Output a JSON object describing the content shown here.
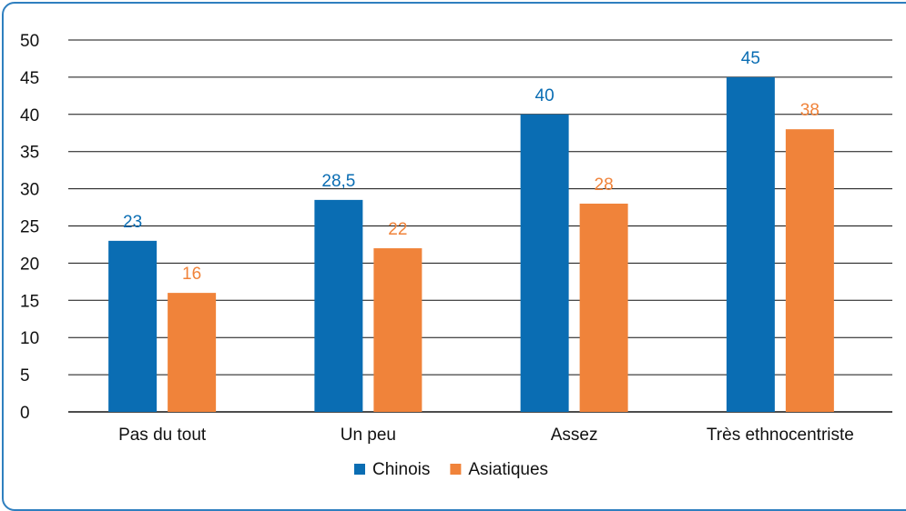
{
  "chart_data": {
    "type": "bar",
    "categories": [
      "Pas du tout",
      "Un peu",
      "Assez",
      "Très ethnocentriste"
    ],
    "series": [
      {
        "name": "Chinois",
        "values": [
          23,
          28.5,
          40,
          45
        ],
        "labels": [
          "23",
          "28,5",
          "40",
          "45"
        ],
        "color": "#0a6db3"
      },
      {
        "name": "Asiatiques",
        "values": [
          16,
          22,
          28,
          38
        ],
        "labels": [
          "16",
          "22",
          "28",
          "38"
        ],
        "color": "#f0833a"
      }
    ],
    "ylim": [
      0,
      50
    ],
    "yticks": [
      0,
      5,
      10,
      15,
      20,
      25,
      30,
      35,
      40,
      45,
      50
    ],
    "grid": true,
    "legend_position": "bottom",
    "frame_color": "#2f7fbf"
  }
}
